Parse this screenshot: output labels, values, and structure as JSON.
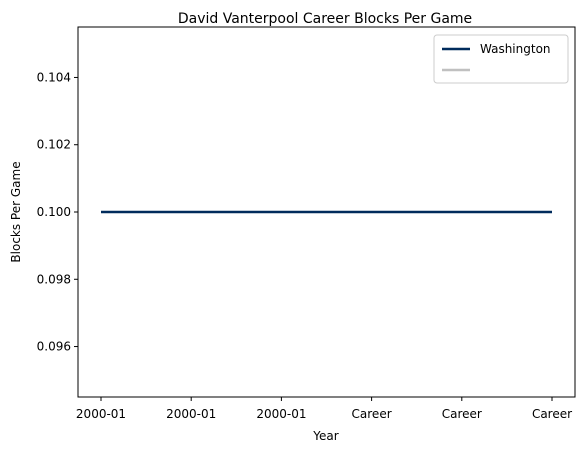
{
  "chart_data": {
    "type": "line",
    "title": "David Vanterpool Career Blocks Per Game",
    "xlabel": "Year",
    "ylabel": "Blocks Per Game",
    "x_tick_labels": [
      "2000-01",
      "2000-01",
      "2000-01",
      "Career",
      "Career",
      "Career"
    ],
    "y_ticks": [
      0.096,
      0.098,
      0.1,
      0.102,
      0.104
    ],
    "y_tick_labels": [
      "0.096",
      "0.098",
      "0.100",
      "0.102",
      "0.104"
    ],
    "ylim": [
      0.0945,
      0.1055
    ],
    "grid": false,
    "legend_position": "top-right",
    "series": [
      {
        "name": "Washington",
        "color": "#002B5C",
        "values": [
          0.1,
          0.1,
          0.1,
          0.1,
          0.1,
          0.1
        ]
      },
      {
        "name": "",
        "color": "#C0C0C0",
        "values": []
      }
    ]
  }
}
